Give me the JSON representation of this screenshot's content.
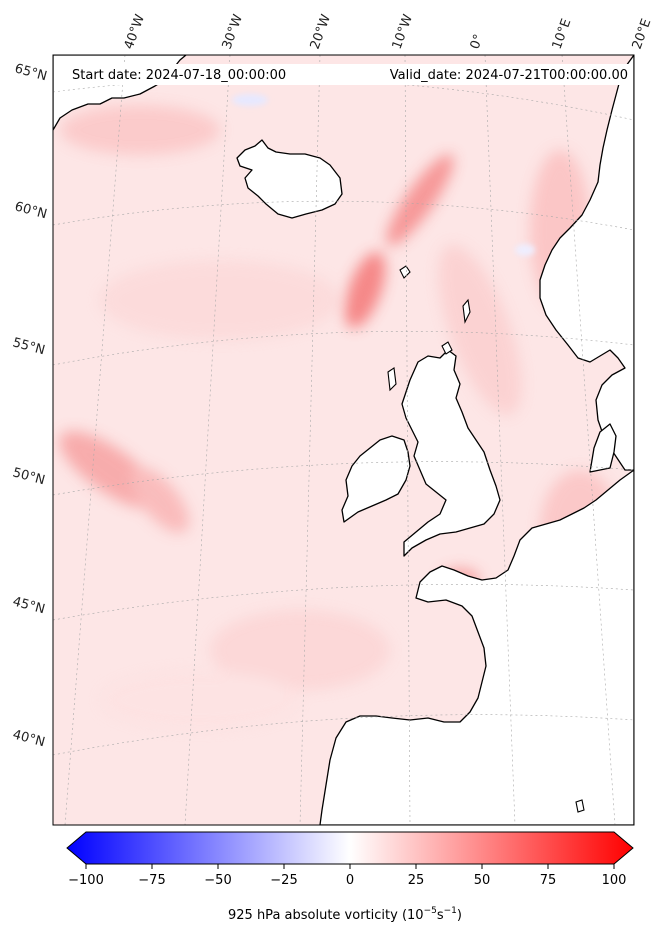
{
  "map": {
    "start_date": "Start date: 2024-07-18_00:00:00",
    "valid_date": "Valid_date: 2024-07-21T00:00:00.00",
    "lon_labels": [
      "40°W",
      "30°W",
      "20°W",
      "10°W",
      "0°",
      "10°E",
      "20°E"
    ],
    "lat_labels": [
      "65°N",
      "60°N",
      "55°N",
      "50°N",
      "45°N",
      "40°N"
    ],
    "field": "925 hPa absolute vorticity",
    "colors": {
      "background": "#fde8e8",
      "land": "#ffffff",
      "coast": "#000000",
      "gridline": "#9a9a9a"
    }
  },
  "colorbar": {
    "label": "925 hPa absolute vorticity (10",
    "label_exp1": "−5",
    "label_mid": "s",
    "label_exp2": "−1",
    "label_end": ")",
    "ticks": [
      "−100",
      "−75",
      "−50",
      "−25",
      "0",
      "25",
      "50",
      "75",
      "100"
    ],
    "range": [
      -100,
      100
    ],
    "colors": {
      "min": "#0000ff",
      "mid": "#ffffff",
      "max": "#ff0000"
    }
  }
}
